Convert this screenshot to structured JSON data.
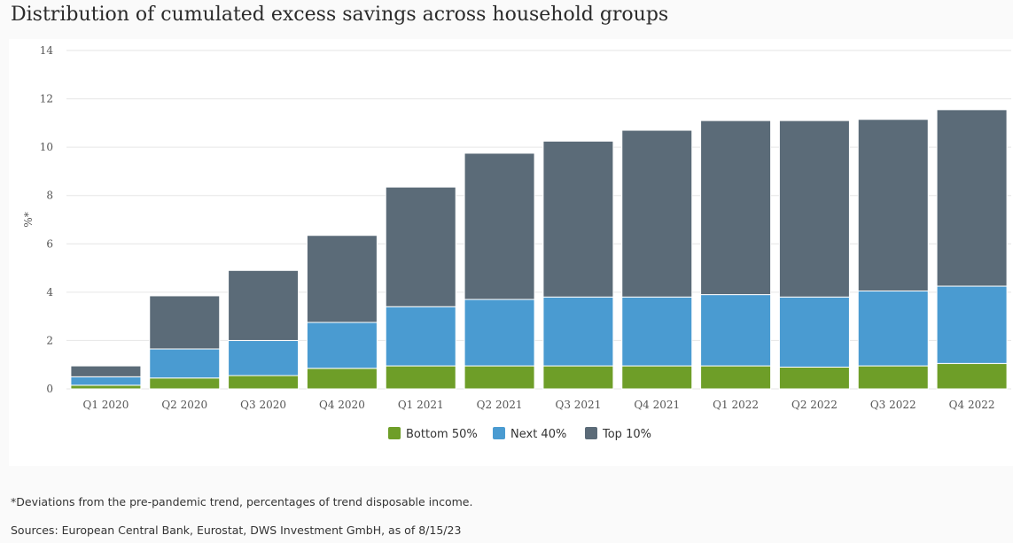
{
  "title": "Distribution of cumulated excess savings across household groups",
  "footnote": "*Deviations from the pre-pandemic trend, percentages of trend disposable income.",
  "source": "Sources: European Central Bank, Eurostat, DWS Investment GmbH, as of 8/15/23",
  "colors": {
    "bottom50": "#6e9e28",
    "next40": "#4a9bd1",
    "top10": "#5b6b78",
    "grid": "#e6e6e6"
  },
  "chart_data": {
    "type": "bar",
    "stacked": true,
    "categories": [
      "Q1 2020",
      "Q2 2020",
      "Q3 2020",
      "Q4 2020",
      "Q1 2021",
      "Q2 2021",
      "Q3 2021",
      "Q4 2021",
      "Q1 2022",
      "Q2 2022",
      "Q3 2022",
      "Q4 2022"
    ],
    "series": [
      {
        "name": "Bottom 50%",
        "values": [
          0.15,
          0.45,
          0.55,
          0.85,
          0.95,
          0.95,
          0.95,
          0.95,
          0.95,
          0.9,
          0.95,
          1.05
        ]
      },
      {
        "name": "Next 40%",
        "values": [
          0.35,
          1.2,
          1.45,
          1.9,
          2.45,
          2.75,
          2.85,
          2.85,
          2.95,
          2.9,
          3.1,
          3.2
        ]
      },
      {
        "name": "Top 10%",
        "values": [
          0.45,
          2.2,
          2.9,
          3.6,
          4.95,
          6.05,
          6.45,
          6.9,
          7.2,
          7.3,
          7.1,
          7.3
        ]
      }
    ],
    "ylabel": "%*",
    "ylim": [
      0,
      14
    ],
    "yticks": [
      "0",
      "2",
      "4",
      "6",
      "8",
      "10",
      "12",
      "14"
    ],
    "grid": true,
    "legend_position": "bottom-center"
  }
}
